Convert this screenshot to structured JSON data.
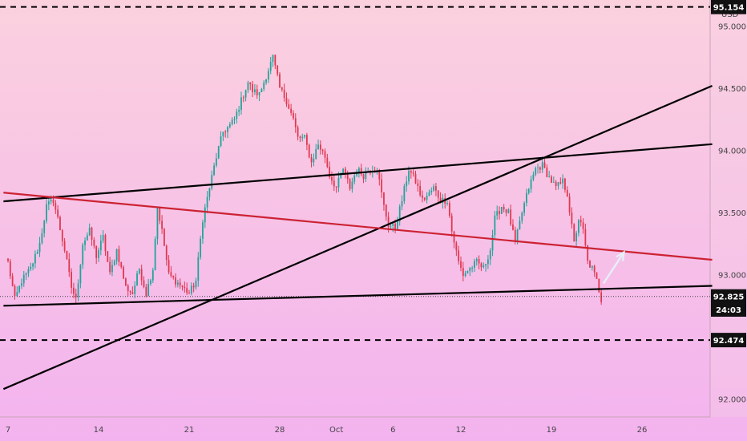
{
  "chart_data": {
    "type": "candlestick",
    "currency": "USD",
    "y_axis": {
      "ticks": [
        "95.000",
        "94.500",
        "94.000",
        "93.500",
        "93.000",
        "92.000"
      ],
      "tick_values": [
        95.0,
        94.5,
        94.0,
        93.5,
        93.0,
        92.0
      ],
      "range": [
        91.92,
        95.21
      ]
    },
    "x_axis": {
      "ticks": [
        "7",
        "14",
        "21",
        "28",
        "Oct",
        "6",
        "12",
        "19",
        "26"
      ],
      "tick_index": [
        0,
        40,
        80,
        120,
        145,
        170,
        200,
        240,
        280
      ]
    },
    "price_tags": [
      {
        "text": "95.154",
        "value": 95.154
      },
      {
        "text": "92.825",
        "value": 92.825
      },
      {
        "text": "24:03",
        "value": 92.72
      },
      {
        "text": "92.474",
        "value": 92.474
      }
    ],
    "horizontal_dashed_levels": [
      95.154,
      92.474
    ],
    "current_price_line": 92.825,
    "trendlines": [
      {
        "color": "#000000",
        "from": [
          -2,
          93.59
        ],
        "to": [
          311,
          94.05
        ]
      },
      {
        "color": "#000000",
        "from": [
          -2,
          92.75
        ],
        "to": [
          311,
          92.91
        ]
      },
      {
        "color": "#000000",
        "from": [
          -2,
          92.08
        ],
        "to": [
          311,
          94.52
        ]
      },
      {
        "color": "#cc2233",
        "from": [
          -2,
          93.66
        ],
        "to": [
          311,
          93.12
        ]
      }
    ],
    "arrow": {
      "from": [
        263,
        92.93
      ],
      "to": [
        272,
        93.18
      ],
      "color": "#e6eef8"
    },
    "price_keypoints": [
      [
        0,
        93.1
      ],
      [
        3,
        92.8
      ],
      [
        6,
        92.95
      ],
      [
        10,
        93.05
      ],
      [
        14,
        93.25
      ],
      [
        17,
        93.55
      ],
      [
        20,
        93.6
      ],
      [
        22,
        93.45
      ],
      [
        25,
        93.2
      ],
      [
        28,
        92.9
      ],
      [
        30,
        92.8
      ],
      [
        33,
        93.25
      ],
      [
        36,
        93.35
      ],
      [
        39,
        93.15
      ],
      [
        42,
        93.3
      ],
      [
        45,
        93.0
      ],
      [
        48,
        93.2
      ],
      [
        52,
        92.9
      ],
      [
        55,
        92.85
      ],
      [
        58,
        93.05
      ],
      [
        61,
        92.85
      ],
      [
        64,
        93.05
      ],
      [
        66,
        93.55
      ],
      [
        68,
        93.35
      ],
      [
        71,
        93.0
      ],
      [
        74,
        92.95
      ],
      [
        77,
        92.9
      ],
      [
        80,
        92.85
      ],
      [
        83,
        92.95
      ],
      [
        86,
        93.45
      ],
      [
        89,
        93.7
      ],
      [
        92,
        93.95
      ],
      [
        95,
        94.15
      ],
      [
        98,
        94.2
      ],
      [
        100,
        94.25
      ],
      [
        103,
        94.4
      ],
      [
        106,
        94.55
      ],
      [
        108,
        94.48
      ],
      [
        111,
        94.45
      ],
      [
        114,
        94.6
      ],
      [
        117,
        94.75
      ],
      [
        120,
        94.5
      ],
      [
        123,
        94.4
      ],
      [
        126,
        94.25
      ],
      [
        128,
        94.1
      ],
      [
        131,
        94.1
      ],
      [
        134,
        93.9
      ],
      [
        137,
        94.05
      ],
      [
        140,
        93.95
      ],
      [
        142,
        93.8
      ],
      [
        145,
        93.7
      ],
      [
        148,
        93.85
      ],
      [
        151,
        93.7
      ],
      [
        154,
        93.85
      ],
      [
        157,
        93.8
      ],
      [
        160,
        93.85
      ],
      [
        163,
        93.85
      ],
      [
        166,
        93.55
      ],
      [
        168,
        93.4
      ],
      [
        171,
        93.38
      ],
      [
        174,
        93.6
      ],
      [
        177,
        93.85
      ],
      [
        180,
        93.75
      ],
      [
        183,
        93.6
      ],
      [
        186,
        93.65
      ],
      [
        188,
        93.7
      ],
      [
        191,
        93.6
      ],
      [
        194,
        93.6
      ],
      [
        196,
        93.35
      ],
      [
        199,
        93.1
      ],
      [
        201,
        93.0
      ],
      [
        204,
        93.05
      ],
      [
        207,
        93.1
      ],
      [
        210,
        93.05
      ],
      [
        213,
        93.2
      ],
      [
        215,
        93.45
      ],
      [
        218,
        93.55
      ],
      [
        221,
        93.5
      ],
      [
        224,
        93.25
      ],
      [
        227,
        93.5
      ],
      [
        230,
        93.7
      ],
      [
        233,
        93.85
      ],
      [
        236,
        93.88
      ],
      [
        239,
        93.78
      ],
      [
        242,
        93.7
      ],
      [
        245,
        93.75
      ],
      [
        247,
        93.65
      ],
      [
        250,
        93.25
      ],
      [
        252,
        93.45
      ],
      [
        254,
        93.35
      ],
      [
        256,
        93.1
      ],
      [
        258,
        93.05
      ],
      [
        260,
        92.95
      ],
      [
        262,
        92.8
      ]
    ]
  }
}
